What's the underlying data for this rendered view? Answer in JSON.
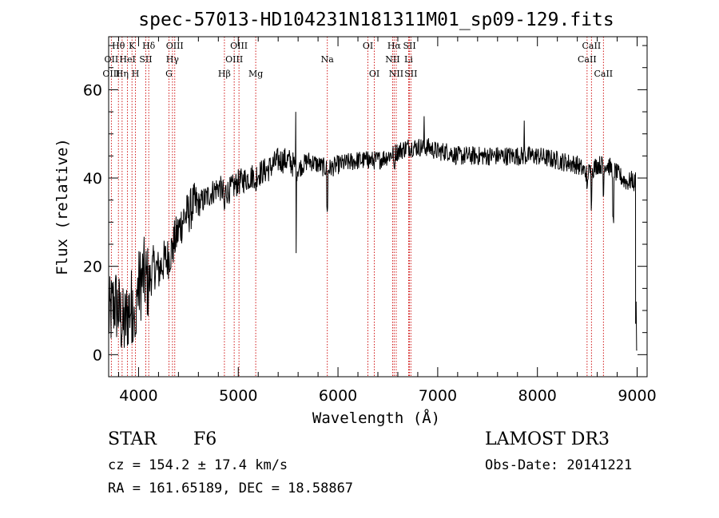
{
  "chart_data": {
    "type": "line",
    "title": "spec-57013-HD104231N181311M01_sp09-129.fits",
    "xlabel": "Wavelength (Å)",
    "ylabel": "Flux (relative)",
    "xlim": [
      3700,
      9100
    ],
    "ylim": [
      -5,
      72
    ],
    "x_ticks": [
      4000,
      5000,
      6000,
      7000,
      8000,
      9000
    ],
    "y_ticks": [
      0,
      20,
      40,
      60
    ],
    "grid": false,
    "series": [
      {
        "name": "flux",
        "anchors": [
          [
            3700,
            8
          ],
          [
            3760,
            12
          ],
          [
            3800,
            10
          ],
          [
            3850,
            6
          ],
          [
            3900,
            10
          ],
          [
            3950,
            12
          ],
          [
            4000,
            15
          ],
          [
            4050,
            18
          ],
          [
            4100,
            16
          ],
          [
            4150,
            20
          ],
          [
            4200,
            19
          ],
          [
            4250,
            21
          ],
          [
            4300,
            22
          ],
          [
            4350,
            25
          ],
          [
            4400,
            28
          ],
          [
            4450,
            31
          ],
          [
            4500,
            32
          ],
          [
            4550,
            34
          ],
          [
            4600,
            34
          ],
          [
            4650,
            35
          ],
          [
            4700,
            36
          ],
          [
            4750,
            37
          ],
          [
            4800,
            38
          ],
          [
            4850,
            37
          ],
          [
            4900,
            37
          ],
          [
            5000,
            39
          ],
          [
            5100,
            40
          ],
          [
            5200,
            41
          ],
          [
            5300,
            42
          ],
          [
            5400,
            44
          ],
          [
            5500,
            44
          ],
          [
            5600,
            42
          ],
          [
            5700,
            44
          ],
          [
            5800,
            43
          ],
          [
            5900,
            42
          ],
          [
            6000,
            43
          ],
          [
            6200,
            44
          ],
          [
            6400,
            44
          ],
          [
            6500,
            45
          ],
          [
            6600,
            46
          ],
          [
            6700,
            47
          ],
          [
            6800,
            47
          ],
          [
            6900,
            47
          ],
          [
            7000,
            46
          ],
          [
            7100,
            46
          ],
          [
            7200,
            45
          ],
          [
            7400,
            45
          ],
          [
            7600,
            45
          ],
          [
            7800,
            45
          ],
          [
            8000,
            45
          ],
          [
            8200,
            44
          ],
          [
            8400,
            43
          ],
          [
            8500,
            41
          ],
          [
            8600,
            43
          ],
          [
            8700,
            43
          ],
          [
            8800,
            41
          ],
          [
            8900,
            39
          ],
          [
            9000,
            40
          ]
        ],
        "dips": [
          [
            3934,
            4
          ],
          [
            3969,
            4
          ],
          [
            4102,
            18
          ],
          [
            4340,
            26
          ],
          [
            4861,
            33
          ],
          [
            5175,
            38
          ],
          [
            5893,
            33
          ],
          [
            6563,
            42
          ],
          [
            8498,
            37
          ],
          [
            8542,
            34
          ],
          [
            8662,
            36
          ],
          [
            8760,
            30
          ],
          [
            8970,
            38
          ]
        ],
        "spikes": [
          [
            5577,
            55
          ],
          [
            6300,
            46
          ],
          [
            6863,
            54
          ],
          [
            7869,
            53
          ],
          [
            9000,
            12
          ]
        ],
        "end_drop": [
          [
            8985,
            7
          ],
          [
            8990,
            12
          ],
          [
            8995,
            1
          ],
          [
            9000,
            1
          ]
        ]
      }
    ],
    "line_markers": [
      {
        "label": "OII",
        "x": 3727,
        "row": 1
      },
      {
        "label": "OIII",
        "x": 3727,
        "row": 2
      },
      {
        "label": "Hθ",
        "x": 3798,
        "row": 0
      },
      {
        "label": "Hη",
        "x": 3835,
        "row": 2
      },
      {
        "label": "HeI",
        "x": 3889,
        "row": 1
      },
      {
        "label": "K",
        "x": 3934,
        "row": 0
      },
      {
        "label": "SII",
        "x": 4072,
        "row": 1
      },
      {
        "label": "H",
        "x": 3969,
        "row": 2
      },
      {
        "label": "Hδ",
        "x": 4102,
        "row": 0
      },
      {
        "label": "OIII",
        "x": 4363,
        "row": 0
      },
      {
        "label": "Hγ",
        "x": 4340,
        "row": 1
      },
      {
        "label": "G",
        "x": 4305,
        "row": 2
      },
      {
        "label": "Hβ",
        "x": 4861,
        "row": 2
      },
      {
        "label": "OIII",
        "x": 5007,
        "row": 0
      },
      {
        "label": "OIII",
        "x": 4959,
        "row": 1
      },
      {
        "label": "Mg",
        "x": 5175,
        "row": 2
      },
      {
        "label": "Na",
        "x": 5893,
        "row": 1
      },
      {
        "label": "OI",
        "x": 6300,
        "row": 0
      },
      {
        "label": "OI",
        "x": 6364,
        "row": 2
      },
      {
        "label": "Hα",
        "x": 6563,
        "row": 0
      },
      {
        "label": "NII",
        "x": 6548,
        "row": 1
      },
      {
        "label": "NII",
        "x": 6584,
        "row": 2
      },
      {
        "label": "SII",
        "x": 6717,
        "row": 0
      },
      {
        "label": "Li",
        "x": 6708,
        "row": 1
      },
      {
        "label": "SII",
        "x": 6731,
        "row": 2
      },
      {
        "label": "CaII",
        "x": 8542,
        "row": 0
      },
      {
        "label": "CaII",
        "x": 8498,
        "row": 1
      },
      {
        "label": "CaII",
        "x": 8662,
        "row": 2
      }
    ],
    "marker_color": "#cc0000"
  },
  "info": {
    "object_class": "STAR",
    "subclass": "F6",
    "survey": "LAMOST DR3",
    "velocity": "cz = 154.2 ± 17.4 km/s",
    "obs_date": "Obs-Date: 20141221",
    "coords": "RA = 161.65189, DEC =  18.58867"
  }
}
